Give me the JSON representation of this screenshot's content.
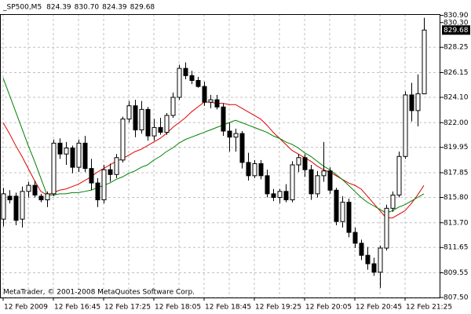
{
  "chart_data": {
    "type": "candlestick",
    "symbol": "_SP500,M5",
    "header_values": [
      "824.39",
      "830.70",
      "824.39",
      "829.68"
    ],
    "watermark": "MetaTrader, © 2001-2008 MetaQuotes Software Corp.",
    "categories": [
      "12 Feb 2009",
      null,
      null,
      null,
      null,
      null,
      null,
      null,
      "12 Feb 16:45",
      null,
      null,
      null,
      null,
      null,
      null,
      null,
      "12 Feb 17:25",
      null,
      null,
      null,
      null,
      null,
      null,
      null,
      "12 Feb 18:05",
      null,
      null,
      null,
      null,
      null,
      null,
      null,
      "12 Feb 18:45",
      null,
      null,
      null,
      null,
      null,
      null,
      null,
      "12 Feb 19:25",
      null,
      null,
      null,
      null,
      null,
      null,
      null,
      "12 Feb 20:05",
      null,
      null,
      null,
      null,
      null,
      null,
      null,
      "12 Feb 20:45",
      null,
      null,
      null,
      null,
      null,
      null,
      null,
      "12 Feb 21:25",
      null,
      null,
      null
    ],
    "open": [
      814.0,
      815.9,
      815.9,
      814.0,
      816.3,
      816.8,
      815.9,
      815.6,
      816.1,
      820.3,
      819.4,
      819.9,
      818.3,
      820.3,
      818.2,
      817.0,
      815.6,
      818.1,
      817.7,
      818.9,
      822.3,
      823.4,
      821.4,
      823.1,
      820.9,
      821.6,
      821.2,
      822.6,
      824.1,
      826.5,
      825.9,
      825.5,
      825.0,
      823.7,
      823.9,
      823.3,
      821.3,
      820.8,
      821.1,
      818.7,
      817.6,
      818.6,
      817.6,
      816.1,
      815.8,
      816.3,
      815.6,
      818.5,
      819.1,
      818.1,
      816.1,
      817.6,
      818.0,
      816.4,
      813.8,
      815.4,
      812.9,
      812.0,
      811.0,
      810.3,
      809.6,
      811.6,
      814.9,
      816.0,
      819.2,
      824.3,
      823.0,
      824.39
    ],
    "high": [
      816.6,
      816.4,
      816.2,
      816.7,
      817.1,
      817.2,
      816.1,
      816.3,
      820.6,
      820.7,
      820.4,
      820.1,
      820.6,
      820.9,
      819.0,
      817.4,
      818.5,
      818.6,
      819.4,
      822.5,
      823.8,
      823.9,
      823.8,
      823.3,
      822.3,
      822.4,
      822.8,
      824.5,
      826.8,
      827.0,
      826.3,
      825.8,
      825.4,
      824.3,
      824.3,
      823.6,
      822.0,
      821.5,
      821.3,
      819.5,
      818.9,
      818.9,
      818.1,
      816.5,
      816.5,
      816.9,
      818.8,
      819.4,
      819.4,
      818.5,
      818.0,
      820.4,
      818.3,
      816.6,
      815.9,
      815.7,
      813.3,
      812.3,
      811.7,
      810.8,
      811.8,
      815.2,
      816.3,
      819.6,
      824.6,
      825.3,
      826.0,
      830.7
    ],
    "low": [
      813.4,
      815.3,
      813.5,
      813.3,
      815.8,
      815.8,
      815.4,
      815.0,
      815.9,
      819.0,
      818.5,
      817.8,
      817.9,
      817.9,
      816.4,
      815.0,
      815.3,
      817.1,
      817.4,
      818.7,
      822.0,
      820.8,
      821.1,
      820.5,
      820.5,
      821.0,
      821.0,
      822.4,
      823.9,
      825.6,
      825.2,
      824.9,
      823.4,
      823.2,
      823.1,
      820.9,
      819.6,
      819.6,
      818.2,
      817.2,
      817.4,
      817.3,
      815.8,
      815.5,
      815.3,
      815.4,
      815.4,
      817.9,
      817.5,
      815.6,
      815.8,
      817.1,
      816.1,
      813.5,
      813.3,
      812.5,
      811.6,
      810.6,
      809.8,
      809.3,
      808.3,
      811.4,
      814.6,
      815.8,
      819.0,
      822.1,
      821.7,
      824.39
    ],
    "close": [
      816.1,
      815.6,
      813.9,
      816.3,
      816.8,
      816.0,
      815.6,
      816.1,
      820.3,
      819.4,
      819.9,
      818.3,
      820.3,
      818.2,
      817.0,
      815.6,
      818.1,
      817.7,
      819.1,
      822.3,
      823.4,
      821.4,
      823.1,
      820.9,
      821.6,
      821.2,
      822.6,
      824.1,
      826.5,
      825.9,
      825.5,
      825.0,
      823.7,
      823.9,
      823.3,
      821.3,
      820.8,
      821.1,
      818.7,
      817.6,
      818.6,
      817.6,
      816.1,
      815.8,
      816.3,
      815.6,
      818.5,
      819.1,
      818.1,
      816.1,
      817.6,
      818.0,
      816.4,
      813.8,
      815.4,
      812.9,
      812.0,
      811.0,
      810.3,
      809.6,
      811.6,
      814.9,
      816.0,
      819.2,
      824.3,
      823.0,
      824.4,
      829.68
    ],
    "up_color": "#ffffff",
    "down_color": "#000000",
    "series": [
      {
        "color": "#e00000",
        "values": [
          822.0,
          821.1,
          820.1,
          819.2,
          818.2,
          817.2,
          816.3,
          816.0,
          816.2,
          816.4,
          816.5,
          816.7,
          816.9,
          817.2,
          817.5,
          817.9,
          818.2,
          818.5,
          818.8,
          819.0,
          819.3,
          819.6,
          819.8,
          820.1,
          820.4,
          820.7,
          821.1,
          821.6,
          822.0,
          822.4,
          822.9,
          823.3,
          823.7,
          823.7,
          823.6,
          823.6,
          823.5,
          823.5,
          823.2,
          822.9,
          822.6,
          822.3,
          821.8,
          821.2,
          820.7,
          820.2,
          819.7,
          819.4,
          819.1,
          818.8,
          818.4,
          818.1,
          817.9,
          817.6,
          817.3,
          817.0,
          816.8,
          816.5,
          815.9,
          815.3,
          814.7,
          814.1,
          814.1,
          814.4,
          814.7,
          815.3,
          816.0,
          816.8
        ]
      },
      {
        "color": "#008000",
        "values": [
          825.7,
          824.3,
          822.9,
          821.5,
          820.1,
          818.8,
          817.4,
          816.0,
          816.0,
          816.1,
          816.1,
          816.2,
          816.2,
          816.3,
          816.4,
          816.6,
          816.8,
          817.0,
          817.3,
          817.5,
          817.8,
          818.0,
          818.3,
          818.5,
          818.9,
          819.2,
          819.6,
          819.9,
          820.3,
          820.6,
          820.8,
          821.0,
          821.2,
          821.4,
          821.6,
          821.8,
          822.0,
          822.2,
          822.0,
          821.8,
          821.6,
          821.4,
          821.2,
          820.9,
          820.7,
          820.4,
          820.2,
          819.9,
          819.5,
          819.2,
          818.8,
          818.4,
          818.1,
          817.7,
          817.3,
          816.8,
          816.3,
          815.8,
          815.4,
          815.1,
          814.8,
          814.5,
          814.7,
          815.0,
          815.2,
          815.5,
          815.8,
          816.1
        ]
      }
    ],
    "ylim": [
      807.5,
      831.0
    ],
    "yticks": [
      {
        "value": 807.5,
        "label": "807.50"
      },
      {
        "value": 809.55,
        "label": "809.55"
      },
      {
        "value": 811.65,
        "label": "811.65"
      },
      {
        "value": 813.7,
        "label": "813.70"
      },
      {
        "value": 815.8,
        "label": "815.80"
      },
      {
        "value": 817.85,
        "label": "817.85"
      },
      {
        "value": 819.95,
        "label": "819.95"
      },
      {
        "value": 822.0,
        "label": "822.00"
      },
      {
        "value": 824.1,
        "label": "824.10"
      },
      {
        "value": 826.15,
        "label": "826.15"
      },
      {
        "value": 828.25,
        "label": "828.25"
      },
      {
        "value": 830.3,
        "label": "830.30"
      },
      {
        "value": 830.9,
        "label": "830.90"
      }
    ],
    "grid": true
  }
}
